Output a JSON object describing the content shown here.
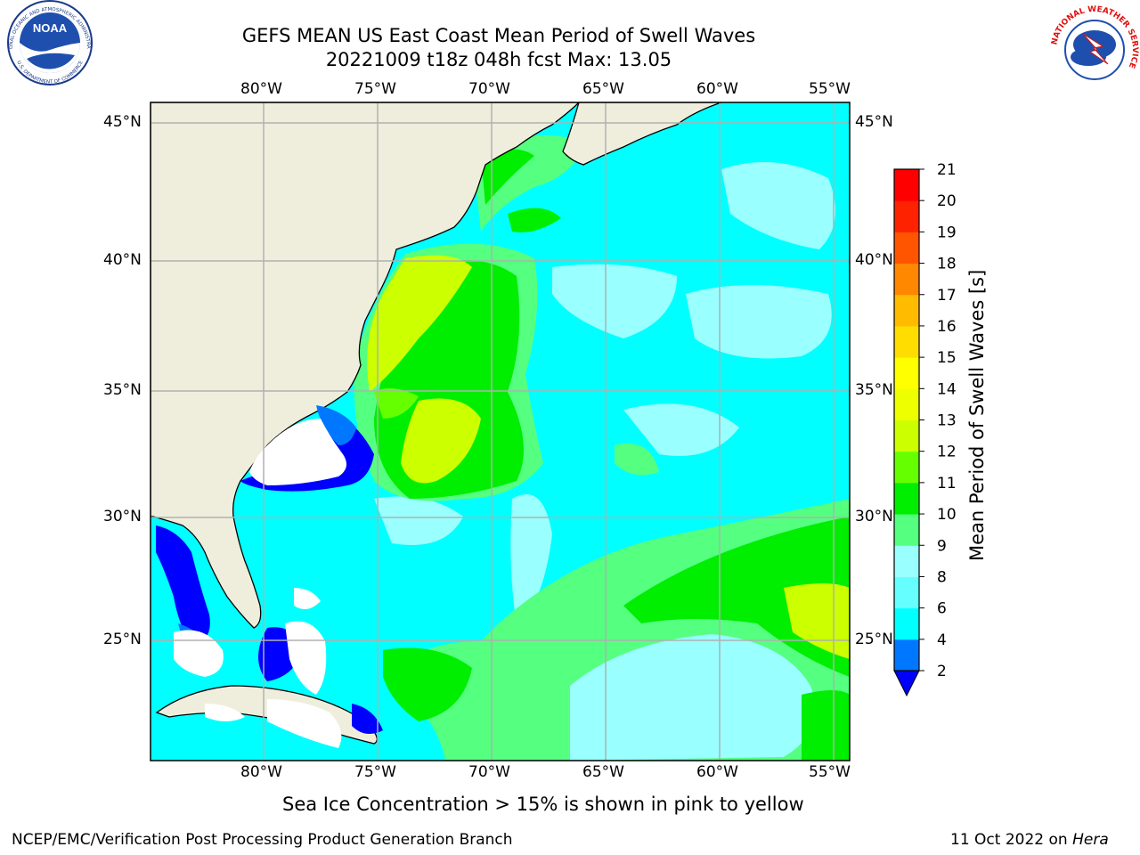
{
  "header": {
    "title_line1": "GEFS MEAN US East Coast Mean Period of Swell Waves",
    "title_line2": "20221009 t18z 048h fcst   Max: 13.05"
  },
  "logos": {
    "noaa_text": "NOAA",
    "noaa_ring_top": "NATIONAL OCEANIC AND ATMOSPHERIC ADMINISTRATION",
    "noaa_ring_bottom": "U.S. DEPARTMENT OF COMMERCE",
    "nws_ring": "NATIONAL WEATHER SERVICE"
  },
  "map": {
    "lon_labels": [
      "80°W",
      "75°W",
      "70°W",
      "65°W",
      "60°W",
      "55°W"
    ],
    "lat_labels": [
      "45°N",
      "40°N",
      "35°N",
      "30°N",
      "25°N"
    ],
    "colors": {
      "land": "#efeedd",
      "cyan": "#00ffff",
      "light_cyan": "#99ffff",
      "pale_cyan": "#66ffff",
      "light_green": "#55ff80",
      "green": "#00ee00",
      "yellow_green": "#ccff00",
      "blue": "#0000ff",
      "mid_blue": "#0077ff",
      "grid": "#b0b0b0"
    }
  },
  "colorbar": {
    "label": "Mean Period of Swell Waves [s]",
    "ticks": [
      "2",
      "4",
      "6",
      "8",
      "9",
      "10",
      "11",
      "12",
      "13",
      "14",
      "15",
      "16",
      "17",
      "18",
      "19",
      "20",
      "21"
    ],
    "colors": [
      "#0000ff",
      "#0077ff",
      "#00ffff",
      "#66ffff",
      "#99ffff",
      "#55ff80",
      "#00ee00",
      "#66ff00",
      "#ccff00",
      "#eeff00",
      "#ffff00",
      "#ffdd00",
      "#ffbb00",
      "#ff8800",
      "#ff5500",
      "#ff2200",
      "#ff0000"
    ]
  },
  "footer": {
    "note": "Sea Ice Concentration > 15% is shown in pink to yellow",
    "left": "NCEP/EMC/Verification Post Processing Product Generation Branch",
    "right_date": "11 Oct 2022 on ",
    "right_machine": "Hera"
  }
}
